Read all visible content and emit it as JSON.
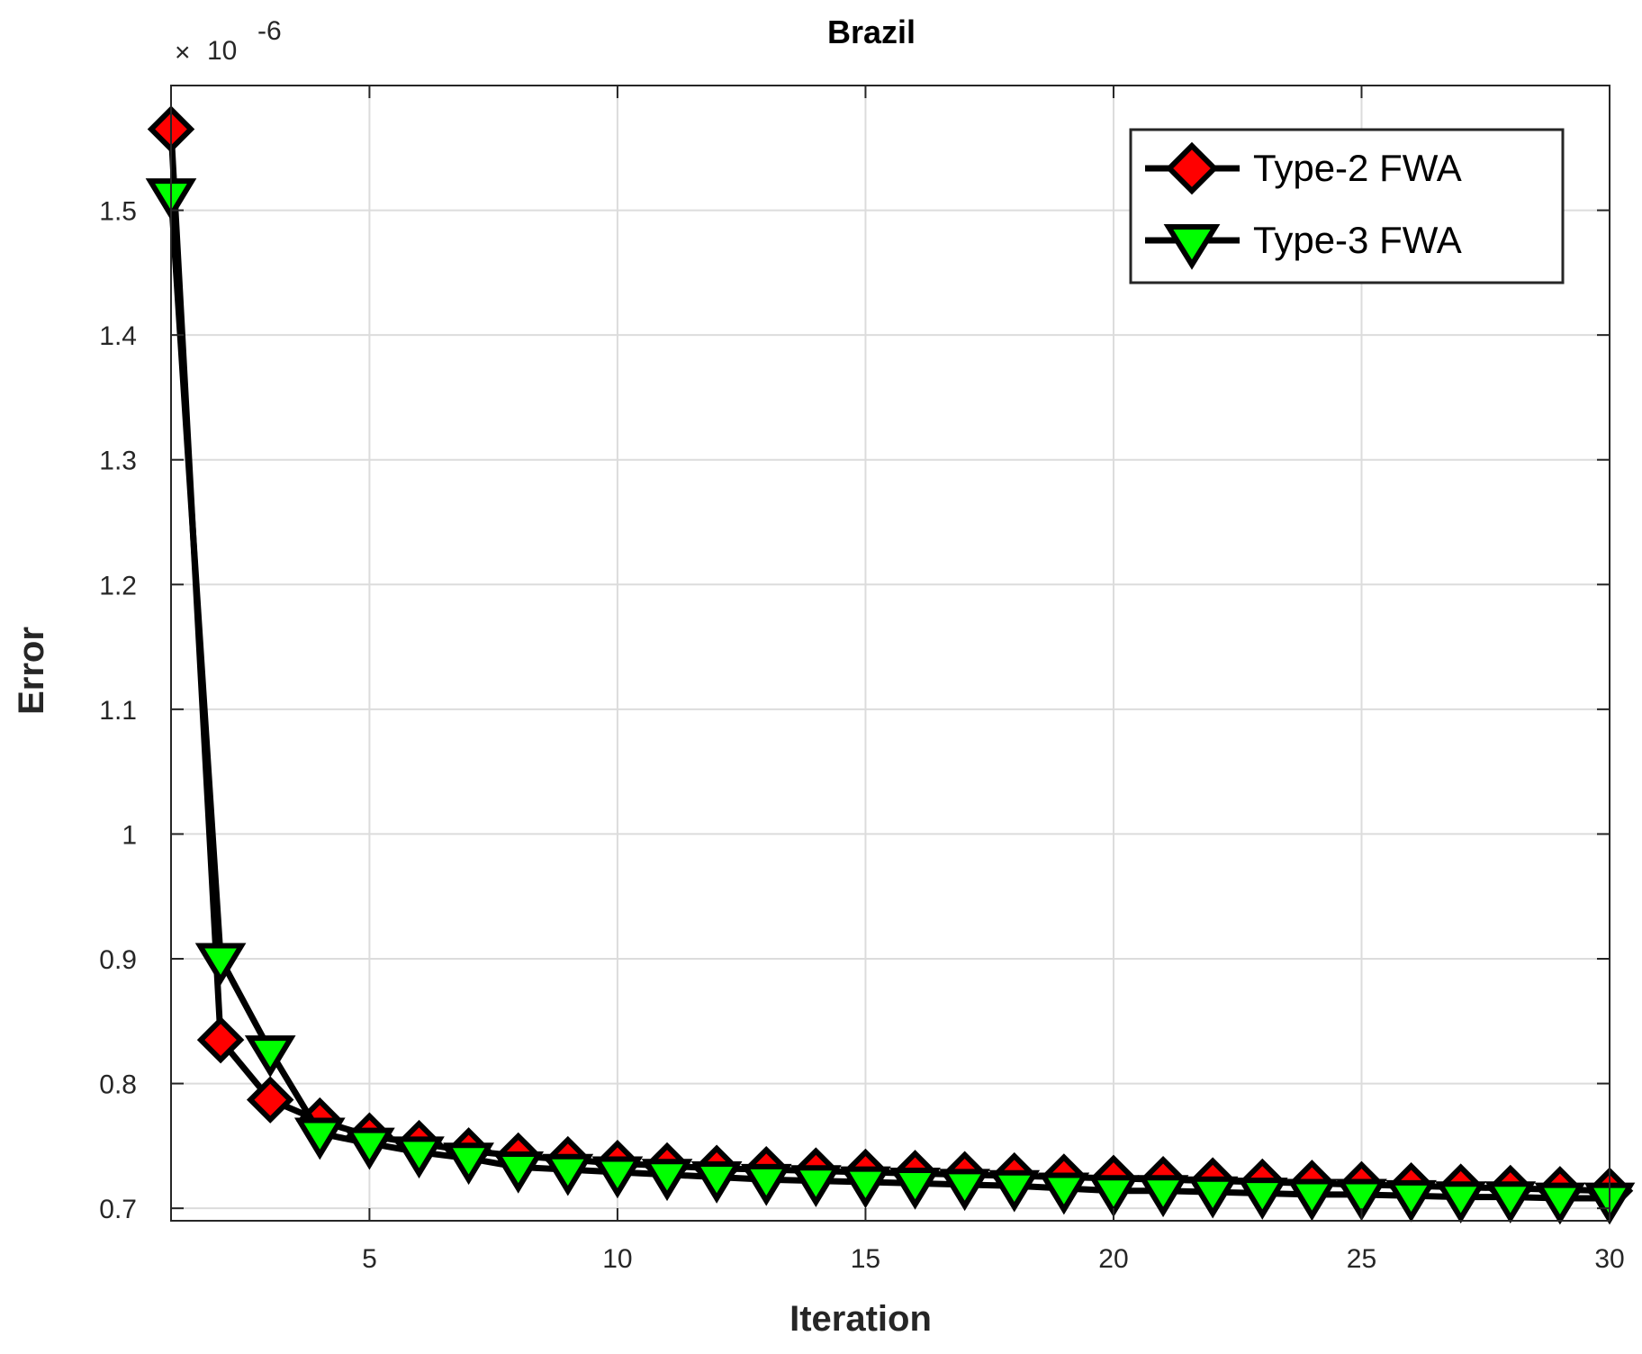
{
  "chart_data": {
    "type": "line",
    "title": "Brazil",
    "xlabel": "Iteration",
    "ylabel": "Error",
    "y_exponent_label": {
      "base": "10",
      "exponent": "-6"
    },
    "xlim": [
      1,
      30
    ],
    "ylim": [
      0.69,
      1.6
    ],
    "x_ticks": [
      5,
      10,
      15,
      20,
      25,
      30
    ],
    "y_ticks": [
      0.7,
      0.8,
      0.9,
      1,
      1.1,
      1.2,
      1.3,
      1.4,
      1.5
    ],
    "y_tick_labels": [
      "0.7",
      "0.8",
      "0.9",
      "1",
      "1.1",
      "1.2",
      "1.3",
      "1.4",
      "1.5"
    ],
    "grid": true,
    "legend_position": "top-right",
    "x": [
      1,
      2,
      3,
      4,
      5,
      6,
      7,
      8,
      9,
      10,
      11,
      12,
      13,
      14,
      15,
      16,
      17,
      18,
      19,
      20,
      21,
      22,
      23,
      24,
      25,
      26,
      27,
      28,
      29,
      30
    ],
    "series": [
      {
        "name": "Type-2 FWA",
        "marker": "diamond",
        "marker_color": "#ff0000",
        "line_color": "#000000",
        "values": [
          1.565,
          0.835,
          0.787,
          0.77,
          0.758,
          0.752,
          0.746,
          0.742,
          0.739,
          0.736,
          0.734,
          0.732,
          0.731,
          0.73,
          0.729,
          0.728,
          0.727,
          0.726,
          0.725,
          0.724,
          0.723,
          0.722,
          0.721,
          0.72,
          0.719,
          0.718,
          0.717,
          0.716,
          0.715,
          0.714
        ]
      },
      {
        "name": "Type-3 FWA",
        "marker": "triangle-down",
        "marker_color": "#00ff00",
        "line_color": "#000000",
        "values": [
          1.513,
          0.9,
          0.826,
          0.76,
          0.752,
          0.745,
          0.74,
          0.733,
          0.731,
          0.729,
          0.727,
          0.725,
          0.723,
          0.722,
          0.721,
          0.72,
          0.719,
          0.718,
          0.716,
          0.714,
          0.714,
          0.713,
          0.712,
          0.711,
          0.711,
          0.71,
          0.709,
          0.709,
          0.708,
          0.708
        ]
      }
    ]
  }
}
